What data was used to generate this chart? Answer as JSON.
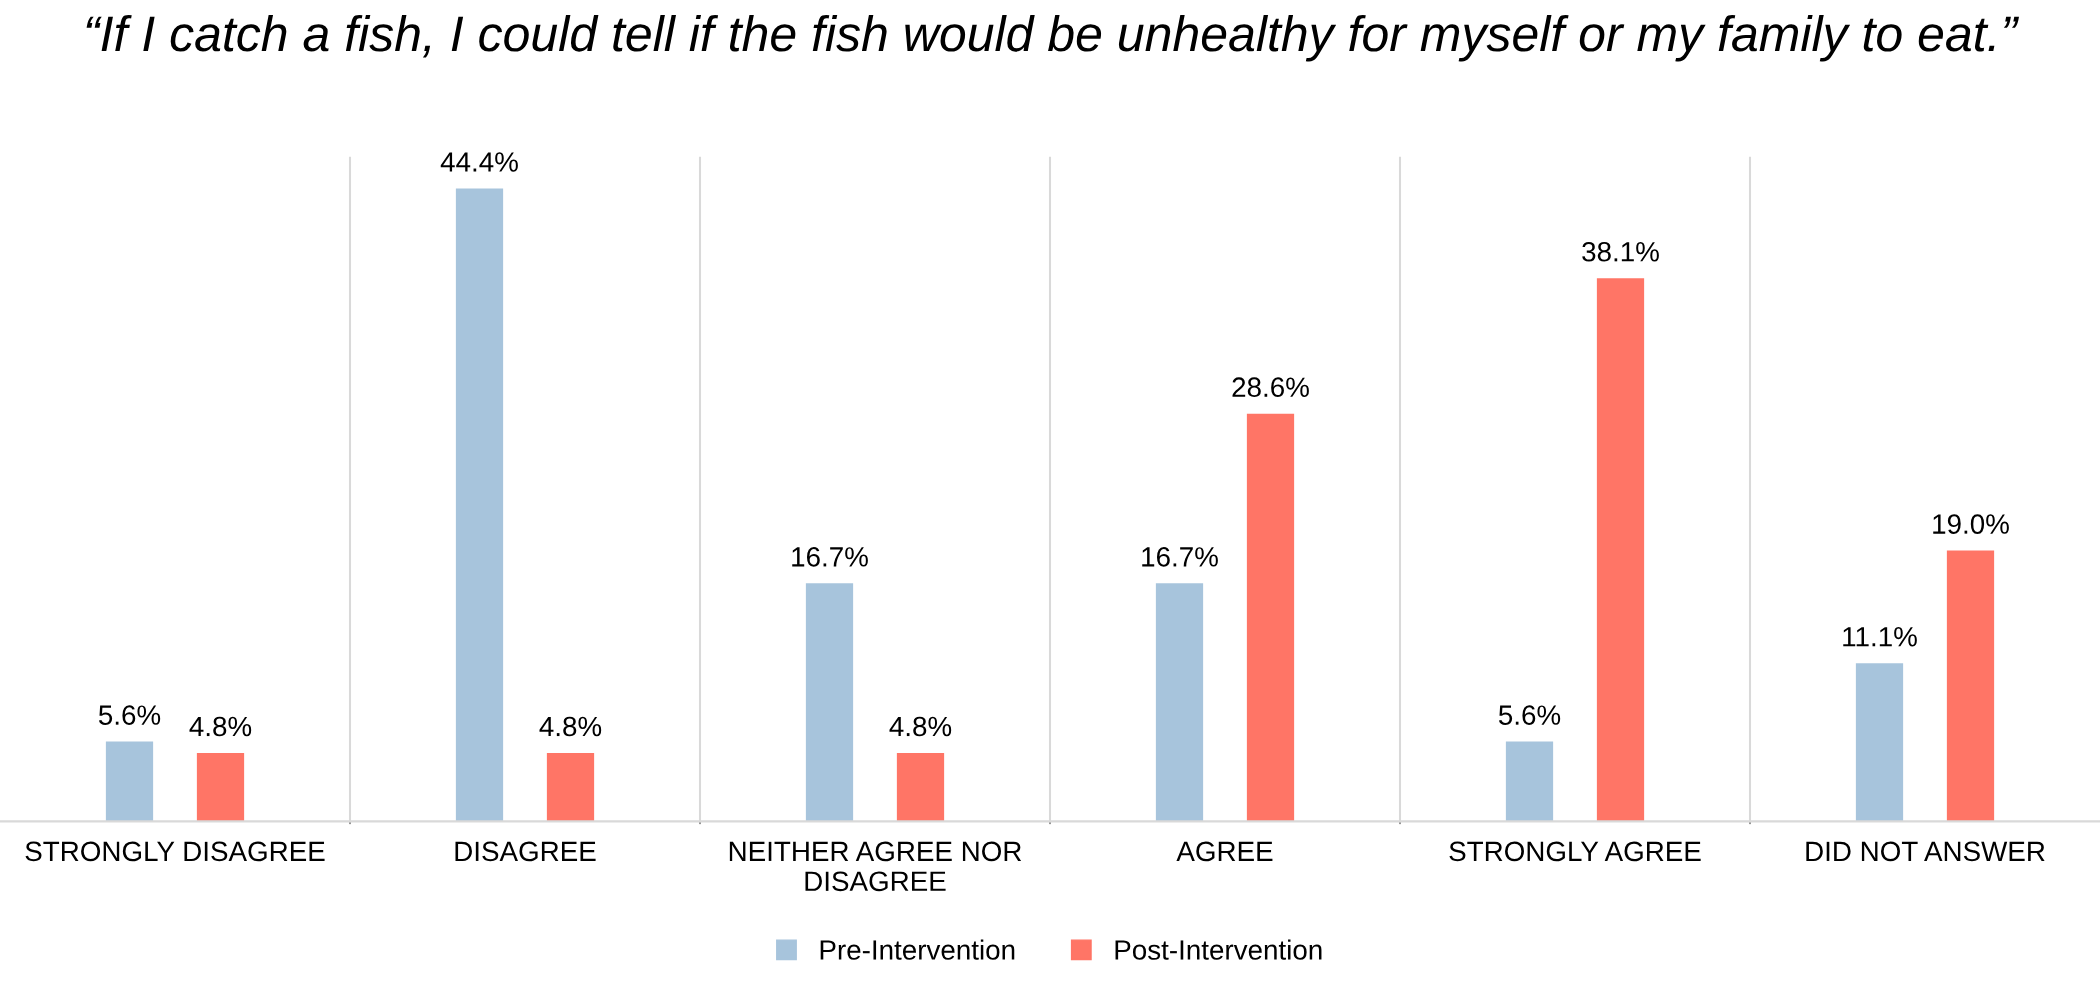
{
  "chart_data": {
    "type": "bar",
    "title": "“If I catch a fish, I could tell if the fish would be unhealthy for myself or my family to eat.”",
    "categories": [
      "STRONGLY DISAGREE",
      "DISAGREE",
      "NEITHER AGREE NOR DISAGREE",
      "AGREE",
      "STRONGLY AGREE",
      "DID NOT ANSWER"
    ],
    "series": [
      {
        "name": "Pre-Intervention",
        "color": "#a7c4dc",
        "values": [
          5.6,
          44.4,
          16.7,
          16.7,
          5.6,
          11.1
        ],
        "value_labels": [
          "5.6%",
          "44.4%",
          "16.7%",
          "16.7%",
          "5.6%",
          "11.1%"
        ]
      },
      {
        "name": "Post-Intervention",
        "color": "#ff7566",
        "values": [
          4.8,
          4.8,
          4.8,
          28.6,
          38.1,
          19.0
        ],
        "value_labels": [
          "4.8%",
          "4.8%",
          "4.8%",
          "28.6%",
          "38.1%",
          "19.0%"
        ]
      }
    ],
    "grid": "x",
    "legend": "bottom"
  }
}
